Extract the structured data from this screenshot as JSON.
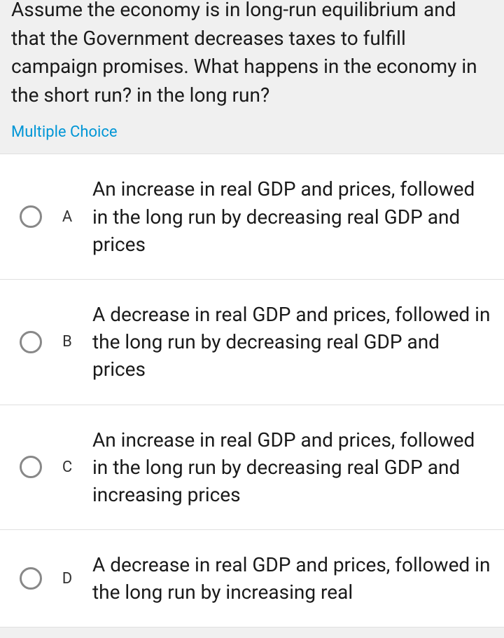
{
  "question": "Assume the economy is in long-run equilibrium and that the Government decreases taxes to fulfill campaign promises. What happens in the economy in the short run? in the long run?",
  "mc_label": "Multiple Choice",
  "colors": {
    "background": "#f0f0f0",
    "option_bg": "#ffffff",
    "text": "#1a1a1a",
    "accent": "#0096d6",
    "radio_border": "#888888",
    "divider": "#e0e0e0"
  },
  "options": [
    {
      "letter": "A",
      "text": "An increase in real GDP and prices, followed in the long run by decreasing real GDP and prices"
    },
    {
      "letter": "B",
      "text": "A decrease in real GDP and prices, followed in the long run by decreasing real GDP and prices"
    },
    {
      "letter": "C",
      "text": "An increase in real GDP and prices, followed in the long run by decreasing real GDP and increasing prices"
    },
    {
      "letter": "D",
      "text": "A decrease in real GDP and prices, followed in the long run by increasing real"
    }
  ]
}
